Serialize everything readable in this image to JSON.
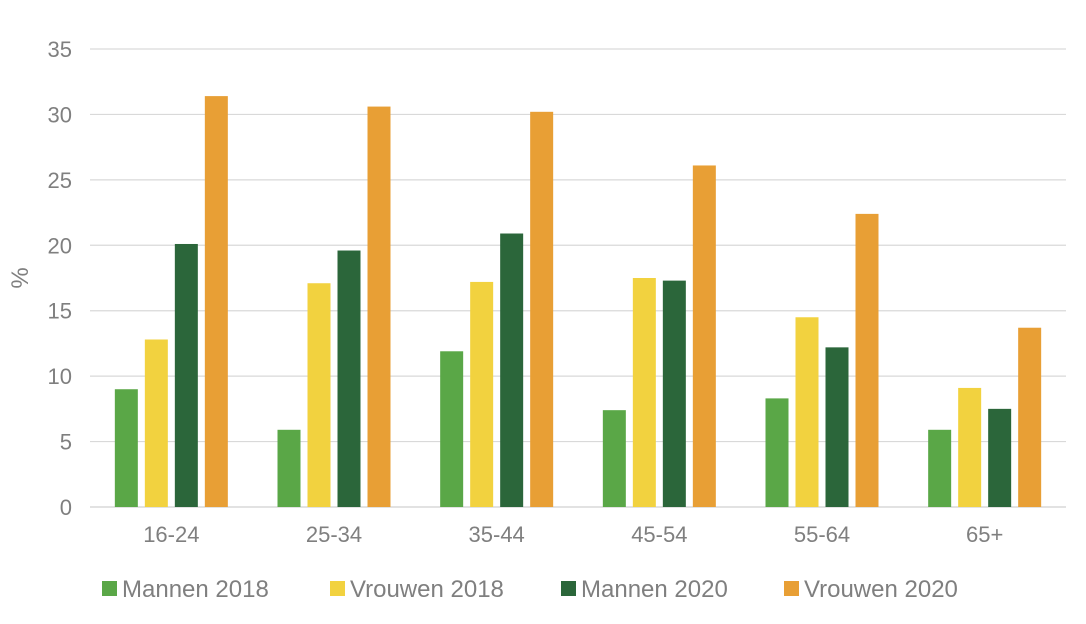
{
  "chart_data": {
    "type": "bar",
    "categories": [
      "16-24",
      "25-34",
      "35-44",
      "45-54",
      "55-64",
      "65+"
    ],
    "series": [
      {
        "name": "Mannen 2018",
        "color": "#5aa747",
        "values": [
          9.0,
          5.9,
          11.9,
          7.4,
          8.3,
          5.9
        ]
      },
      {
        "name": "Vrouwen 2018",
        "color": "#f2d23f",
        "values": [
          12.8,
          17.1,
          17.2,
          17.5,
          14.5,
          9.1
        ]
      },
      {
        "name": "Mannen 2020",
        "color": "#2b663a",
        "values": [
          20.1,
          19.6,
          20.9,
          17.3,
          12.2,
          7.5
        ]
      },
      {
        "name": "Vrouwen 2020",
        "color": "#e89f35",
        "values": [
          31.4,
          30.6,
          30.2,
          26.1,
          22.4,
          13.7
        ]
      }
    ],
    "yticks": [
      0,
      5,
      10,
      15,
      20,
      25,
      30,
      35
    ],
    "ylabel": "%",
    "xlabel": "",
    "ylim": [
      0,
      35
    ],
    "grid": true,
    "legend_position": "bottom"
  }
}
